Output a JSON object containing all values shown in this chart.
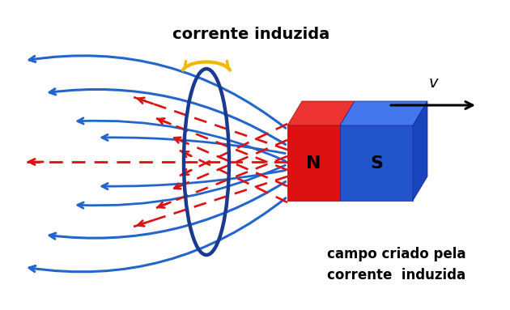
{
  "bg_color": "#ffffff",
  "figsize": [
    6.3,
    3.83
  ],
  "dpi": 100,
  "coil_color": "#1a3a8f",
  "coil_lw": 3.2,
  "red_color": "#dd1111",
  "blue_color": "#2266cc",
  "gold_color": "#f0b800",
  "magnet_N_face": "#dd1111",
  "magnet_S_face": "#2255cc",
  "magnet_N_top": "#ee3333",
  "magnet_S_top": "#4477ee",
  "magnet_S_right": "#1a44bb",
  "text_corrente_induzida": "corrente induzida",
  "text_campo": "campo criado pela\ncorrente  induzida",
  "text_v": "v"
}
